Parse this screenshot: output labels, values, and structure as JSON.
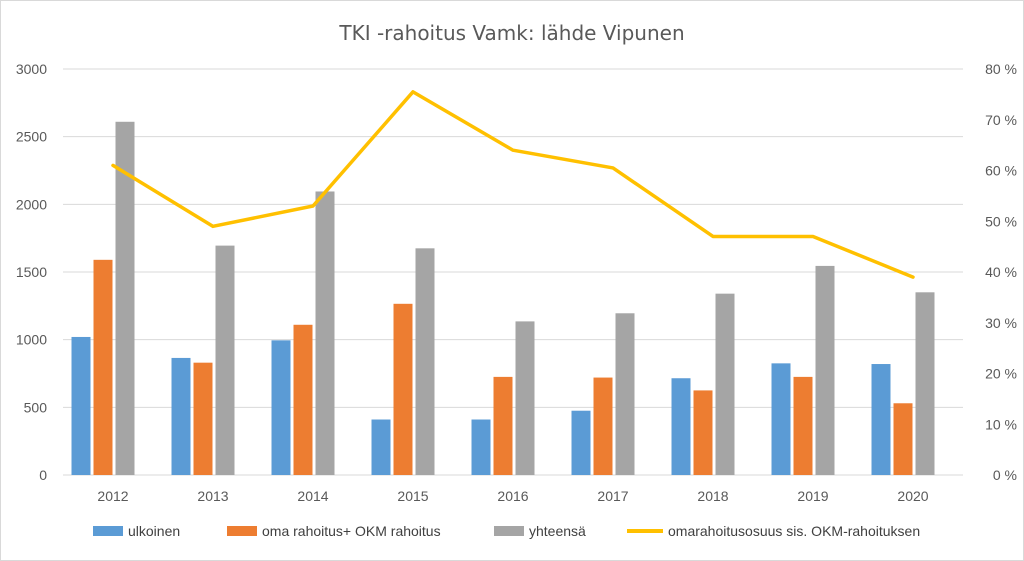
{
  "chart_data": {
    "type": "bar",
    "title": "TKI -rahoitus Vamk: lähde Vipunen",
    "categories": [
      "2012",
      "2013",
      "2014",
      "2015",
      "2016",
      "2017",
      "2018",
      "2019",
      "2020"
    ],
    "series": [
      {
        "name": "ulkoinen",
        "type": "bar",
        "axis": "left",
        "color": "#5B9BD5",
        "values": [
          1020,
          865,
          995,
          410,
          410,
          475,
          715,
          825,
          820
        ]
      },
      {
        "name": "oma rahoitus+ OKM rahoitus",
        "type": "bar",
        "axis": "left",
        "color": "#ED7D31",
        "values": [
          1590,
          830,
          1110,
          1265,
          725,
          720,
          625,
          725,
          530
        ]
      },
      {
        "name": "yhteensä",
        "type": "bar",
        "axis": "left",
        "color": "#A5A5A5",
        "values": [
          2610,
          1695,
          2095,
          1675,
          1135,
          1195,
          1340,
          1545,
          1350
        ]
      },
      {
        "name": "omarahoitusosuus sis. OKM-rahoituksen",
        "type": "line",
        "axis": "right",
        "color": "#FFC000",
        "values": [
          0.61,
          0.49,
          0.53,
          0.755,
          0.64,
          0.605,
          0.47,
          0.47,
          0.39
        ]
      }
    ],
    "y_left": {
      "min": 0,
      "max": 3000,
      "ticks": [
        0,
        500,
        1000,
        1500,
        2000,
        2500,
        3000
      ],
      "tick_labels": [
        "0",
        "500",
        "1000",
        "1500",
        "2000",
        "2500",
        "3000"
      ]
    },
    "y_right": {
      "min": 0,
      "max": 0.8,
      "ticks": [
        0,
        0.1,
        0.2,
        0.3,
        0.4,
        0.5,
        0.6,
        0.7,
        0.8
      ],
      "tick_labels": [
        "0 %",
        "10 %",
        "20 %",
        "30 %",
        "40 %",
        "50 %",
        "60 %",
        "70 %",
        "80 %"
      ]
    },
    "grid": true,
    "legend_position": "bottom"
  }
}
